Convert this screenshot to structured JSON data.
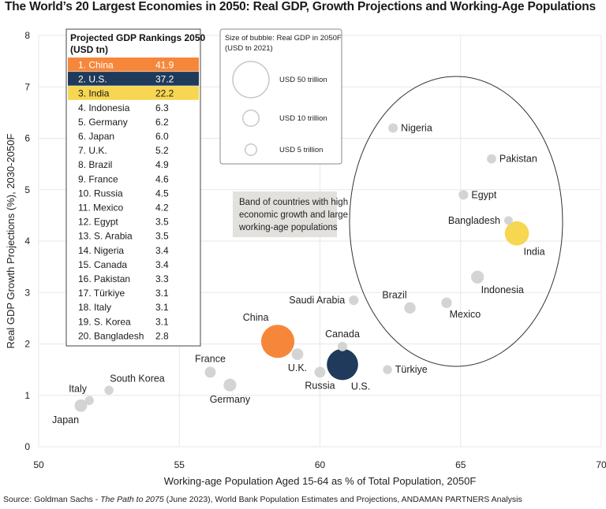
{
  "title": "The World’s 20 Largest Economies in 2050: Real GDP, Growth Projections and Working-Age Populations",
  "source": {
    "prefix": "Source: Goldman Sachs - ",
    "italic": "The Path to 2075",
    "suffix": " (June 2023), World Bank Population Estimates and Projections, ANDAMAN PARTNERS Analysis"
  },
  "colors": {
    "china": "#f6873a",
    "us": "#1f3a5a",
    "india": "#f7d651",
    "other": "#d4d4d4",
    "grid": "#e7e7e7",
    "annotation_bg": "#e3e1dd"
  },
  "chart_data": {
    "type": "scatter",
    "xlabel": "Working-age Population Aged 15-64 as % of Total Population, 2050F",
    "ylabel": "Real GDP Growth Projections (%), 2030-2050F",
    "xlim": [
      50,
      70
    ],
    "ylim": [
      0,
      8
    ],
    "xticks": [
      50,
      55,
      60,
      65,
      70
    ],
    "yticks": [
      0,
      1,
      2,
      3,
      4,
      5,
      6,
      7,
      8
    ],
    "grid": true,
    "points": [
      {
        "label": "China",
        "x": 58.5,
        "y": 2.05,
        "gdp": 41.9,
        "color": "china",
        "label_pos": "top-left"
      },
      {
        "label": "U.S.",
        "x": 60.8,
        "y": 1.6,
        "gdp": 37.2,
        "color": "us",
        "label_pos": "bottom-right"
      },
      {
        "label": "India",
        "x": 67.0,
        "y": 4.15,
        "gdp": 22.2,
        "color": "india",
        "label_pos": "bottom-right"
      },
      {
        "label": "Indonesia",
        "x": 65.6,
        "y": 3.3,
        "gdp": 6.3,
        "color": "other",
        "label_pos": "bottom-right"
      },
      {
        "label": "Germany",
        "x": 56.8,
        "y": 1.2,
        "gdp": 6.2,
        "color": "other",
        "label_pos": "bottom"
      },
      {
        "label": "Japan",
        "x": 51.5,
        "y": 0.8,
        "gdp": 6.0,
        "color": "other",
        "label_pos": "bottom-left"
      },
      {
        "label": "U.K.",
        "x": 59.2,
        "y": 1.8,
        "gdp": 5.2,
        "color": "other",
        "label_pos": "bottom"
      },
      {
        "label": "Brazil",
        "x": 63.2,
        "y": 2.7,
        "gdp": 4.9,
        "color": "other",
        "label_pos": "top-left"
      },
      {
        "label": "France",
        "x": 56.1,
        "y": 1.45,
        "gdp": 4.6,
        "color": "other",
        "label_pos": "top"
      },
      {
        "label": "Russia",
        "x": 60.0,
        "y": 1.45,
        "gdp": 4.5,
        "color": "other",
        "label_pos": "bottom"
      },
      {
        "label": "Mexico",
        "x": 64.5,
        "y": 2.8,
        "gdp": 4.2,
        "color": "other",
        "label_pos": "bottom-right"
      },
      {
        "label": "Egypt",
        "x": 65.1,
        "y": 4.9,
        "gdp": 3.5,
        "color": "other",
        "label_pos": "right"
      },
      {
        "label": "Saudi Arabia",
        "x": 61.2,
        "y": 2.85,
        "gdp": 3.5,
        "color": "other",
        "label_pos": "left"
      },
      {
        "label": "Nigeria",
        "x": 62.6,
        "y": 6.2,
        "gdp": 3.4,
        "color": "other",
        "label_pos": "right"
      },
      {
        "label": "Canada",
        "x": 60.8,
        "y": 1.95,
        "gdp": 3.4,
        "color": "other",
        "label_pos": "top"
      },
      {
        "label": "Pakistan",
        "x": 66.1,
        "y": 5.6,
        "gdp": 3.3,
        "color": "other",
        "label_pos": "right"
      },
      {
        "label": "Türkiye",
        "x": 62.4,
        "y": 1.5,
        "gdp": 3.1,
        "color": "other",
        "label_pos": "right"
      },
      {
        "label": "Italy",
        "x": 51.8,
        "y": 0.9,
        "gdp": 3.1,
        "color": "other",
        "label_pos": "top-left"
      },
      {
        "label": "South Korea",
        "x": 52.5,
        "y": 1.1,
        "gdp": 3.1,
        "color": "other",
        "label_pos": "top-right"
      },
      {
        "label": "Bangladesh",
        "x": 66.7,
        "y": 4.4,
        "gdp": 2.8,
        "color": "other",
        "label_pos": "left"
      }
    ],
    "ranking_table": {
      "title_line1": "Projected GDP Rankings 2050",
      "title_line2": "(USD tn)",
      "rows": [
        {
          "name": "1. China",
          "value": "41.9",
          "highlight": "china"
        },
        {
          "name": "2. U.S.",
          "value": "37.2",
          "highlight": "us"
        },
        {
          "name": "3. India",
          "value": "22.2",
          "highlight": "india"
        },
        {
          "name": "4. Indonesia",
          "value": "6.3"
        },
        {
          "name": "5. Germany",
          "value": "6.2"
        },
        {
          "name": "6. Japan",
          "value": "6.0"
        },
        {
          "name": "7. U.K.",
          "value": "5.2"
        },
        {
          "name": "8. Brazil",
          "value": "4.9"
        },
        {
          "name": "9. France",
          "value": "4.6"
        },
        {
          "name": "10. Russia",
          "value": "4.5"
        },
        {
          "name": "11. Mexico",
          "value": "4.2"
        },
        {
          "name": "12. Egypt",
          "value": "3.5"
        },
        {
          "name": "13. S. Arabia",
          "value": "3.5"
        },
        {
          "name": "14. Nigeria",
          "value": "3.4"
        },
        {
          "name": "15. Canada",
          "value": "3.4"
        },
        {
          "name": "16. Pakistan",
          "value": "3.3"
        },
        {
          "name": "17. Türkiye",
          "value": "3.1"
        },
        {
          "name": "18. Italy",
          "value": "3.1"
        },
        {
          "name": "19. S. Korea",
          "value": "3.1"
        },
        {
          "name": "20. Bangladesh",
          "value": "2.8"
        }
      ]
    },
    "bubble_legend": {
      "title_line1": "Size of bubble: Real GDP in 2050F",
      "title_line2": "(USD tn 2021)",
      "items": [
        {
          "label": "USD 50 trillion",
          "gdp": 50
        },
        {
          "label": "USD 10 trillion",
          "gdp": 10
        },
        {
          "label": "USD 5 trillion",
          "gdp": 5
        }
      ]
    },
    "annotation": {
      "lines": [
        "Band of countries with high",
        "economic growth and large",
        "working-age populations"
      ]
    }
  }
}
